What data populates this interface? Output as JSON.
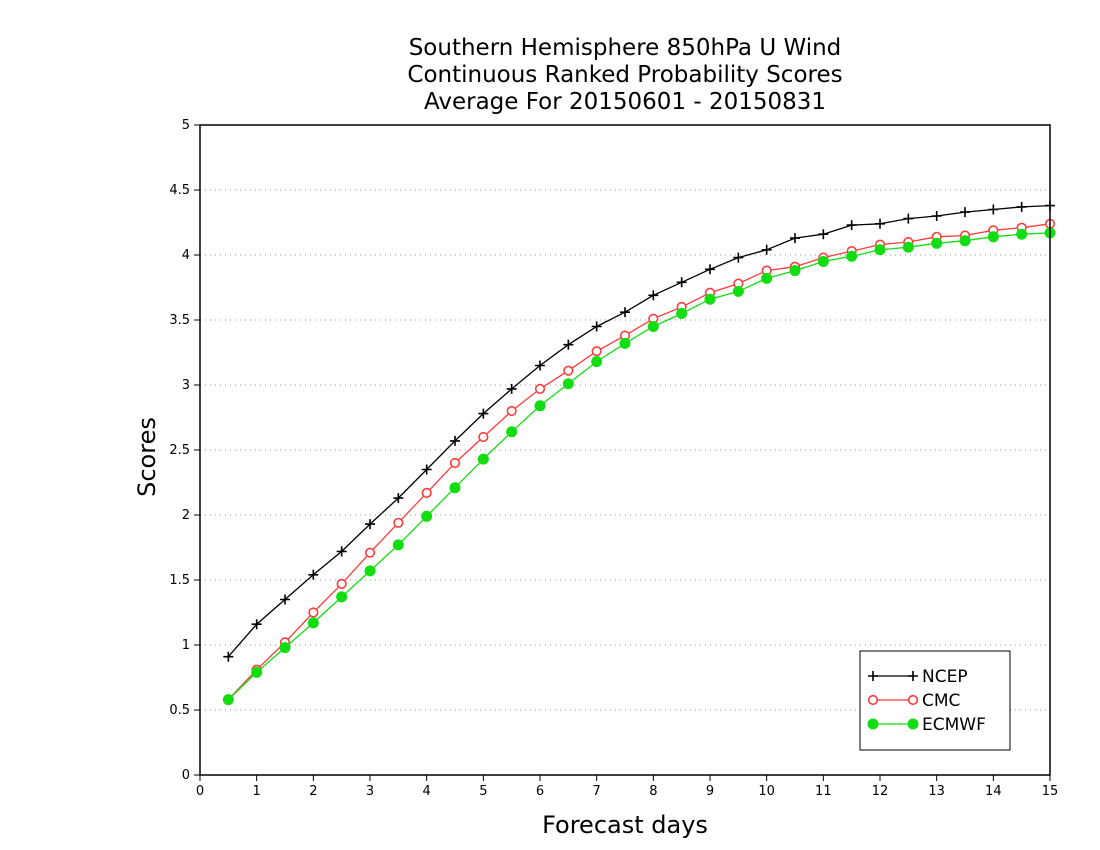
{
  "chart_data": {
    "type": "line",
    "title_lines": [
      "Southern Hemisphere 850hPa U Wind",
      "Continuous Ranked Probability Scores",
      "Average For 20150601 - 20150831"
    ],
    "xlabel": "Forecast days",
    "ylabel": "Scores",
    "xlim": [
      0,
      15
    ],
    "ylim": [
      0,
      5
    ],
    "x_ticks": [
      "0",
      "1",
      "2",
      "3",
      "4",
      "5",
      "6",
      "7",
      "8",
      "9",
      "10",
      "11",
      "12",
      "13",
      "14",
      "15"
    ],
    "y_ticks": [
      "0",
      "0.5",
      "1",
      "1.5",
      "2",
      "2.5",
      "3",
      "3.5",
      "4",
      "4.5",
      "5"
    ],
    "grid": "horizontal dotted",
    "legend_position": "bottom-right",
    "x": [
      0.5,
      1,
      1.5,
      2,
      2.5,
      3,
      3.5,
      4,
      4.5,
      5,
      5.5,
      6,
      6.5,
      7,
      7.5,
      8,
      8.5,
      9,
      9.5,
      10,
      10.5,
      11,
      11.5,
      12,
      12.5,
      13,
      13.5,
      14,
      14.5,
      15
    ],
    "series": [
      {
        "name": "NCEP",
        "color": "#000000",
        "marker": "plus",
        "values": [
          0.91,
          1.16,
          1.35,
          1.54,
          1.72,
          1.93,
          2.13,
          2.35,
          2.57,
          2.78,
          2.97,
          3.15,
          3.31,
          3.45,
          3.56,
          3.69,
          3.79,
          3.89,
          3.98,
          4.04,
          4.13,
          4.16,
          4.23,
          4.24,
          4.28,
          4.3,
          4.33,
          4.35,
          4.37,
          4.38
        ]
      },
      {
        "name": "CMC",
        "color": "#ff3b3b",
        "marker": "open-circle",
        "values": [
          0.58,
          0.81,
          1.02,
          1.25,
          1.47,
          1.71,
          1.94,
          2.17,
          2.4,
          2.6,
          2.8,
          2.97,
          3.11,
          3.26,
          3.38,
          3.51,
          3.6,
          3.71,
          3.78,
          3.88,
          3.91,
          3.98,
          4.03,
          4.08,
          4.1,
          4.14,
          4.15,
          4.19,
          4.21,
          4.24
        ]
      },
      {
        "name": "ECMWF",
        "color": "#11dd11",
        "marker": "filled-circle",
        "values": [
          0.58,
          0.79,
          0.98,
          1.17,
          1.37,
          1.57,
          1.77,
          1.99,
          2.21,
          2.43,
          2.64,
          2.84,
          3.01,
          3.18,
          3.32,
          3.45,
          3.55,
          3.66,
          3.72,
          3.82,
          3.88,
          3.95,
          3.99,
          4.04,
          4.06,
          4.09,
          4.11,
          4.14,
          4.16,
          4.17
        ]
      }
    ]
  }
}
